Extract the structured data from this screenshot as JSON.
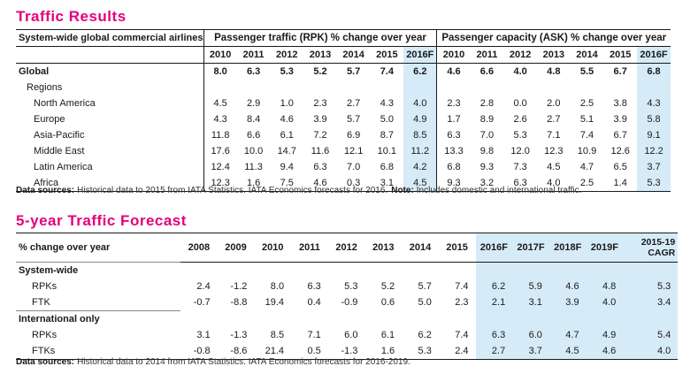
{
  "traffic_results": {
    "title": "Traffic Results",
    "header": {
      "label": "System-wide global commercial airlines",
      "rpk": "Passenger traffic (RPK) % change over year",
      "ask": "Passenger capacity (ASK) % change over year"
    },
    "years": [
      "2010",
      "2011",
      "2012",
      "2013",
      "2014",
      "2015",
      "2016F",
      "2010",
      "2011",
      "2012",
      "2013",
      "2014",
      "2015",
      "2016F"
    ],
    "rows": [
      {
        "label": "Global",
        "values": [
          "8.0",
          "6.3",
          "5.3",
          "5.2",
          "5.7",
          "7.4",
          "6.2",
          "4.6",
          "6.6",
          "4.0",
          "4.8",
          "5.5",
          "6.7",
          "6.8"
        ]
      },
      {
        "label": "Regions"
      },
      {
        "label": "North America",
        "values": [
          "4.5",
          "2.9",
          "1.0",
          "2.3",
          "2.7",
          "4.3",
          "4.0",
          "2.3",
          "2.8",
          "0.0",
          "2.0",
          "2.5",
          "3.8",
          "4.3"
        ]
      },
      {
        "label": "Europe",
        "values": [
          "4.3",
          "8.4",
          "4.6",
          "3.9",
          "5.7",
          "5.0",
          "4.9",
          "1.7",
          "8.9",
          "2.6",
          "2.7",
          "5.1",
          "3.9",
          "5.8"
        ]
      },
      {
        "label": "Asia-Pacific",
        "values": [
          "11.8",
          "6.6",
          "6.1",
          "7.2",
          "6.9",
          "8.7",
          "8.5",
          "6.3",
          "7.0",
          "5.3",
          "7.1",
          "7.4",
          "6.7",
          "9.1"
        ]
      },
      {
        "label": "Middle East",
        "values": [
          "17.6",
          "10.0",
          "14.7",
          "11.6",
          "12.1",
          "10.1",
          "11.2",
          "13.3",
          "9.8",
          "12.0",
          "12.3",
          "10.9",
          "12.6",
          "12.2"
        ]
      },
      {
        "label": "Latin America",
        "values": [
          "12.4",
          "11.3",
          "9.4",
          "6.3",
          "7.0",
          "6.8",
          "4.2",
          "6.8",
          "9.3",
          "7.3",
          "4.5",
          "4.7",
          "6.5",
          "3.7"
        ]
      },
      {
        "label": "Africa",
        "values": [
          "12.3",
          "1.6",
          "7.5",
          "4.6",
          "0.3",
          "3.1",
          "4.5",
          "9.3",
          "3.2",
          "6.3",
          "4.0",
          "2.5",
          "1.4",
          "5.3"
        ]
      }
    ],
    "footnote": [
      {
        "label": "Data sources:",
        "text": "Historical data to 2015 from IATA Statistics. IATA Economics forecasts for 2016."
      },
      {
        "label": "Note:",
        "text": "Includes domestic and international traffic."
      }
    ]
  },
  "forecast": {
    "title": "5-year Traffic Forecast",
    "header": [
      "% change over year",
      "2008",
      "2009",
      "2010",
      "2011",
      "2012",
      "2013",
      "2014",
      "2015",
      "2016F",
      "2017F",
      "2018F",
      "2019F",
      "2015-19 CAGR"
    ],
    "sections": [
      {
        "label": "System-wide",
        "rows": [
          {
            "label": "RPKs",
            "values": [
              "2.4",
              "-1.2",
              "8.0",
              "6.3",
              "5.3",
              "5.2",
              "5.7",
              "7.4",
              "6.2",
              "5.9",
              "4.6",
              "4.8",
              "5.3"
            ]
          },
          {
            "label": "FTK",
            "values": [
              "-0.7",
              "-8.8",
              "19.4",
              "0.4",
              "-0.9",
              "0.6",
              "5.0",
              "2.3",
              "2.1",
              "3.1",
              "3.9",
              "4.0",
              "3.4"
            ]
          }
        ]
      },
      {
        "label": "International only",
        "rows": [
          {
            "label": "RPKs",
            "values": [
              "3.1",
              "-1.3",
              "8.5",
              "7.1",
              "6.0",
              "6.1",
              "6.2",
              "7.4",
              "6.3",
              "6.0",
              "4.7",
              "4.9",
              "5.4"
            ]
          },
          {
            "label": "FTKs",
            "values": [
              "-0.8",
              "-8.6",
              "21.4",
              "0.5",
              "-1.3",
              "1.6",
              "5.3",
              "2.4",
              "2.7",
              "3.7",
              "4.5",
              "4.6",
              "4.0"
            ]
          }
        ]
      }
    ],
    "footnote": [
      {
        "label": "Data sources:",
        "text": "Historical data to 2014 from IATA Statistics. IATA Economics forecasts for 2016-2019."
      }
    ]
  }
}
